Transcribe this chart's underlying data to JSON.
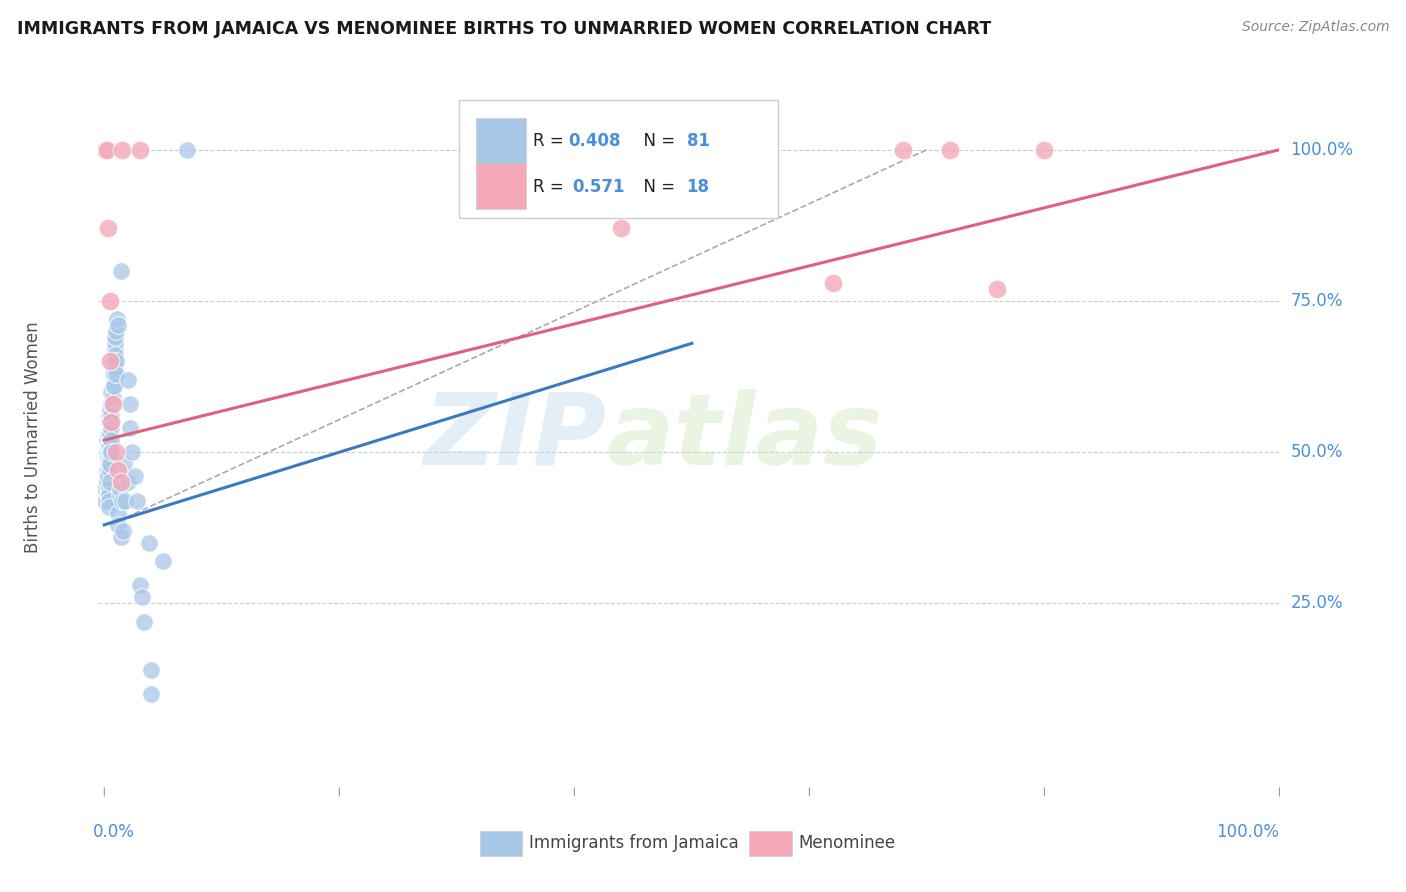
{
  "title": "IMMIGRANTS FROM JAMAICA VS MENOMINEE BIRTHS TO UNMARRIED WOMEN CORRELATION CHART",
  "source": "Source: ZipAtlas.com",
  "ylabel": "Births to Unmarried Women",
  "legend_blue_label": "Immigrants from Jamaica",
  "legend_pink_label": "Menominee",
  "watermark_zip": "ZIP",
  "watermark_atlas": "atlas",
  "blue_color": "#a8c8e8",
  "pink_color": "#f4a8b8",
  "blue_line_color": "#3a7abf",
  "pink_line_color": "#e06080",
  "title_color": "#1a1a1a",
  "axis_label_color": "#4a90d9",
  "blue_scatter": [
    [
      0.001,
      0.42
    ],
    [
      0.001,
      0.44
    ],
    [
      0.002,
      0.46
    ],
    [
      0.002,
      0.5
    ],
    [
      0.002,
      0.47
    ],
    [
      0.002,
      0.45
    ],
    [
      0.002,
      0.52
    ],
    [
      0.003,
      0.51
    ],
    [
      0.003,
      0.49
    ],
    [
      0.003,
      0.47
    ],
    [
      0.003,
      0.46
    ],
    [
      0.003,
      0.44
    ],
    [
      0.003,
      0.43
    ],
    [
      0.003,
      0.53
    ],
    [
      0.004,
      0.5
    ],
    [
      0.004,
      0.48
    ],
    [
      0.004,
      0.56
    ],
    [
      0.004,
      0.44
    ],
    [
      0.004,
      0.43
    ],
    [
      0.004,
      0.42
    ],
    [
      0.004,
      0.41
    ],
    [
      0.004,
      0.55
    ],
    [
      0.004,
      0.53
    ],
    [
      0.004,
      0.51
    ],
    [
      0.005,
      0.49
    ],
    [
      0.005,
      0.47
    ],
    [
      0.005,
      0.45
    ],
    [
      0.005,
      0.57
    ],
    [
      0.005,
      0.55
    ],
    [
      0.005,
      0.53
    ],
    [
      0.005,
      0.51
    ],
    [
      0.005,
      0.5
    ],
    [
      0.005,
      0.48
    ],
    [
      0.006,
      0.6
    ],
    [
      0.006,
      0.58
    ],
    [
      0.006,
      0.56
    ],
    [
      0.006,
      0.54
    ],
    [
      0.006,
      0.52
    ],
    [
      0.006,
      0.5
    ],
    [
      0.007,
      0.65
    ],
    [
      0.007,
      0.63
    ],
    [
      0.007,
      0.61
    ],
    [
      0.007,
      0.59
    ],
    [
      0.008,
      0.63
    ],
    [
      0.008,
      0.61
    ],
    [
      0.008,
      0.66
    ],
    [
      0.008,
      0.64
    ],
    [
      0.009,
      0.67
    ],
    [
      0.009,
      0.65
    ],
    [
      0.009,
      0.68
    ],
    [
      0.009,
      0.66
    ],
    [
      0.009,
      0.69
    ],
    [
      0.01,
      0.7
    ],
    [
      0.01,
      0.65
    ],
    [
      0.01,
      0.63
    ],
    [
      0.011,
      0.72
    ],
    [
      0.012,
      0.71
    ],
    [
      0.012,
      0.4
    ],
    [
      0.012,
      0.38
    ],
    [
      0.013,
      0.43
    ],
    [
      0.013,
      0.44
    ],
    [
      0.014,
      0.8
    ],
    [
      0.014,
      0.36
    ],
    [
      0.015,
      0.42
    ],
    [
      0.016,
      0.37
    ],
    [
      0.017,
      0.48
    ],
    [
      0.018,
      0.42
    ],
    [
      0.02,
      0.45
    ],
    [
      0.02,
      0.62
    ],
    [
      0.022,
      0.58
    ],
    [
      0.022,
      0.54
    ],
    [
      0.024,
      0.5
    ],
    [
      0.026,
      0.46
    ],
    [
      0.028,
      0.42
    ],
    [
      0.03,
      0.28
    ],
    [
      0.032,
      0.26
    ],
    [
      0.034,
      0.22
    ],
    [
      0.038,
      0.35
    ],
    [
      0.04,
      0.14
    ],
    [
      0.04,
      0.1
    ],
    [
      0.05,
      0.32
    ],
    [
      0.07,
      1.0
    ]
  ],
  "pink_scatter": [
    [
      0.001,
      1.0
    ],
    [
      0.002,
      1.0
    ],
    [
      0.015,
      1.0
    ],
    [
      0.03,
      1.0
    ],
    [
      0.003,
      0.87
    ],
    [
      0.005,
      0.75
    ],
    [
      0.007,
      0.58
    ],
    [
      0.01,
      0.5
    ],
    [
      0.012,
      0.47
    ],
    [
      0.014,
      0.45
    ],
    [
      0.005,
      0.65
    ],
    [
      0.006,
      0.55
    ],
    [
      0.44,
      0.87
    ],
    [
      0.62,
      0.78
    ],
    [
      0.68,
      1.0
    ],
    [
      0.72,
      1.0
    ],
    [
      0.76,
      0.77
    ],
    [
      0.8,
      1.0
    ]
  ],
  "blue_line_x": [
    0.0,
    0.5
  ],
  "blue_line_y": [
    0.38,
    0.68
  ],
  "pink_line_x": [
    0.0,
    1.0
  ],
  "pink_line_y": [
    0.52,
    1.0
  ],
  "dashed_line_x": [
    0.005,
    0.7
  ],
  "dashed_line_y": [
    0.38,
    1.0
  ],
  "xlim": [
    -0.005,
    1.0
  ],
  "ylim": [
    -0.05,
    1.1
  ]
}
